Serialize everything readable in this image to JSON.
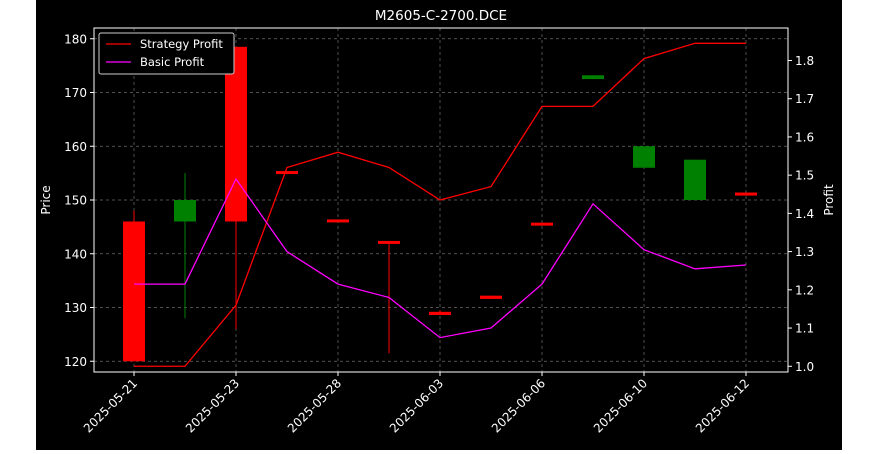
{
  "chart_data": {
    "type": "candlestick",
    "title": "M2605-C-2700.DCE",
    "xlabel": "",
    "ylabel": "Price",
    "y2label": "Profit",
    "ylim": [
      118,
      182
    ],
    "y2lim": [
      0.985,
      1.885
    ],
    "yticks": [
      120,
      130,
      140,
      150,
      160,
      170,
      180
    ],
    "y2ticks": [
      1.0,
      1.1,
      1.2,
      1.3,
      1.4,
      1.5,
      1.6,
      1.7,
      1.8
    ],
    "xtick_labels": [
      "2025-05-21",
      "2025-05-23",
      "2025-05-28",
      "2025-06-03",
      "2025-06-06",
      "2025-06-10",
      "2025-06-12"
    ],
    "xtick_index": [
      0,
      2,
      4,
      6,
      8,
      10,
      12
    ],
    "grid": true,
    "legend_position": "top-left",
    "candles": [
      {
        "i": 0,
        "open": 146,
        "high": 148,
        "low": 120,
        "close": 120
      },
      {
        "i": 1,
        "open": 146,
        "high": 155,
        "low": 128,
        "close": 150
      },
      {
        "i": 2,
        "open": 178.5,
        "high": 178.5,
        "low": 126,
        "close": 146
      },
      {
        "i": 3,
        "open": 155.2,
        "high": 155.2,
        "low": 155,
        "close": 155
      },
      {
        "i": 4,
        "open": 146.2,
        "high": 146.2,
        "low": 146,
        "close": 146
      },
      {
        "i": 5,
        "open": 142.2,
        "high": 142.2,
        "low": 121.5,
        "close": 142
      },
      {
        "i": 6,
        "open": 129.2,
        "high": 129.5,
        "low": 128.8,
        "close": 128.6
      },
      {
        "i": 7,
        "open": 132.2,
        "high": 132.2,
        "low": 131.6,
        "close": 131.6
      },
      {
        "i": 8,
        "open": 145.6,
        "high": 145.6,
        "low": 145.4,
        "close": 145.4
      },
      {
        "i": 9,
        "open": 172.5,
        "high": 173.2,
        "low": 172.5,
        "close": 173.2
      },
      {
        "i": 10,
        "open": 156,
        "high": 160,
        "low": 156,
        "close": 160
      },
      {
        "i": 11,
        "open": 150,
        "high": 157.5,
        "low": 150,
        "close": 157.5
      },
      {
        "i": 12,
        "open": 151.2,
        "high": 151.2,
        "low": 151,
        "close": 151
      }
    ],
    "series": [
      {
        "name": "Strategy Profit",
        "color": "#ff0000",
        "values": [
          1.0,
          1.0,
          1.16,
          1.52,
          1.56,
          1.52,
          1.435,
          1.47,
          1.68,
          1.68,
          1.805,
          1.845,
          1.845
        ]
      },
      {
        "name": "Basic Profit",
        "color": "#ff00ff",
        "values": [
          1.215,
          1.215,
          1.49,
          1.3,
          1.215,
          1.18,
          1.075,
          1.1,
          1.215,
          1.425,
          1.305,
          1.255,
          1.265
        ]
      }
    ],
    "up_color": "#008000",
    "down_color": "#ff0000"
  }
}
